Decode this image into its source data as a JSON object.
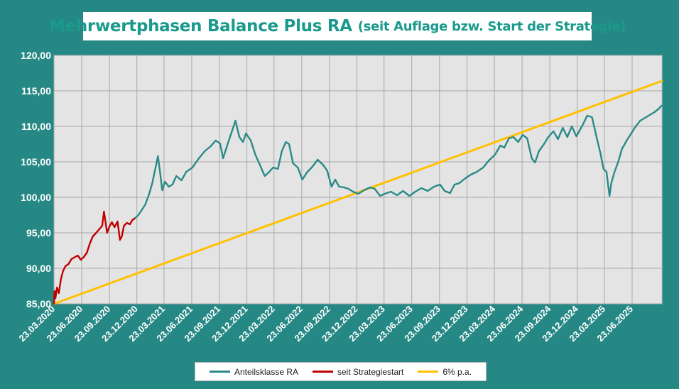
{
  "header": {
    "title": "Mehrwertphasen Balance Plus RA",
    "subtitle": "(seit Auflage bzw. Start der Strategie)"
  },
  "legend": {
    "items": [
      {
        "label": "Anteilsklasse RA",
        "color": "#2a8a87"
      },
      {
        "label": "seit Strategiestart",
        "color": "#c00000"
      },
      {
        "label": "6% p.a.",
        "color": "#ffc000"
      }
    ]
  },
  "chart_data": {
    "type": "line",
    "title": "Mehrwertphasen Balance Plus RA (seit Auflage bzw. Start der Strategie)",
    "xlabel": "",
    "ylabel": "",
    "ylim": [
      85,
      120
    ],
    "xlim": [
      "2020-03-23",
      "2025-09-30"
    ],
    "grid": true,
    "legend_position": "bottom",
    "y_ticks": [
      "85,00",
      "90,00",
      "95,00",
      "100,00",
      "105,00",
      "110,00",
      "115,00",
      "120,00"
    ],
    "y_tick_values": [
      85,
      90,
      95,
      100,
      105,
      110,
      115,
      120
    ],
    "x_ticks": [
      "23.03.2020",
      "23.06.2020",
      "23.09.2020",
      "23.12.2020",
      "23.03.2021",
      "23.06.2021",
      "23.09.2021",
      "23.12.2021",
      "23.03.2022",
      "23.06.2022",
      "23.09.2022",
      "23.12.2022",
      "23.03.2023",
      "23.06.2023",
      "23.09.2023",
      "23.12.2023",
      "23.03.2024",
      "23.06.2024",
      "23.09.2024",
      "23.12.2024",
      "23.03.2025",
      "23.06.2025"
    ],
    "x_tick_dates": [
      "2020-03-23",
      "2020-06-23",
      "2020-09-23",
      "2020-12-23",
      "2021-03-23",
      "2021-06-23",
      "2021-09-23",
      "2021-12-23",
      "2022-03-23",
      "2022-06-23",
      "2022-09-23",
      "2022-12-23",
      "2023-03-23",
      "2023-06-23",
      "2023-09-23",
      "2023-12-23",
      "2024-03-23",
      "2024-06-23",
      "2024-09-23",
      "2024-12-23",
      "2025-03-23",
      "2025-06-23"
    ],
    "series": [
      {
        "name": "Anteilsklasse RA",
        "color": "#2a8a87",
        "points": [
          [
            "2020-12-15",
            97.0
          ],
          [
            "2020-12-28",
            97.5
          ],
          [
            "2021-01-08",
            98.2
          ],
          [
            "2021-01-20",
            99.0
          ],
          [
            "2021-02-02",
            100.5
          ],
          [
            "2021-02-12",
            102.0
          ],
          [
            "2021-02-22",
            104.0
          ],
          [
            "2021-03-03",
            105.8
          ],
          [
            "2021-03-10",
            103.5
          ],
          [
            "2021-03-17",
            101.0
          ],
          [
            "2021-03-26",
            102.2
          ],
          [
            "2021-04-08",
            101.5
          ],
          [
            "2021-04-20",
            101.8
          ],
          [
            "2021-05-03",
            103.0
          ],
          [
            "2021-05-20",
            102.4
          ],
          [
            "2021-06-05",
            103.6
          ],
          [
            "2021-06-25",
            104.2
          ],
          [
            "2021-07-15",
            105.4
          ],
          [
            "2021-08-05",
            106.5
          ],
          [
            "2021-08-25",
            107.2
          ],
          [
            "2021-09-10",
            108.0
          ],
          [
            "2021-09-25",
            107.6
          ],
          [
            "2021-10-05",
            105.5
          ],
          [
            "2021-10-20",
            107.5
          ],
          [
            "2021-11-05",
            109.5
          ],
          [
            "2021-11-15",
            110.8
          ],
          [
            "2021-11-28",
            108.5
          ],
          [
            "2021-12-10",
            107.8
          ],
          [
            "2021-12-20",
            109.0
          ],
          [
            "2022-01-05",
            108.0
          ],
          [
            "2022-01-20",
            106.0
          ],
          [
            "2022-02-05",
            104.5
          ],
          [
            "2022-02-20",
            103.0
          ],
          [
            "2022-03-05",
            103.5
          ],
          [
            "2022-03-20",
            104.2
          ],
          [
            "2022-04-05",
            104.0
          ],
          [
            "2022-04-18",
            106.5
          ],
          [
            "2022-05-01",
            107.8
          ],
          [
            "2022-05-12",
            107.5
          ],
          [
            "2022-05-25",
            104.8
          ],
          [
            "2022-06-10",
            104.2
          ],
          [
            "2022-06-25",
            102.5
          ],
          [
            "2022-07-10",
            103.5
          ],
          [
            "2022-07-28",
            104.3
          ],
          [
            "2022-08-15",
            105.3
          ],
          [
            "2022-09-01",
            104.6
          ],
          [
            "2022-09-15",
            103.8
          ],
          [
            "2022-09-30",
            101.5
          ],
          [
            "2022-10-12",
            102.5
          ],
          [
            "2022-10-25",
            101.5
          ],
          [
            "2022-11-10",
            101.4
          ],
          [
            "2022-11-25",
            101.2
          ],
          [
            "2022-12-10",
            100.8
          ],
          [
            "2022-12-28",
            100.5
          ],
          [
            "2023-01-15",
            101.0
          ],
          [
            "2023-02-05",
            101.4
          ],
          [
            "2023-02-20",
            101.2
          ],
          [
            "2023-03-10",
            100.2
          ],
          [
            "2023-03-25",
            100.5
          ],
          [
            "2023-04-15",
            100.8
          ],
          [
            "2023-05-05",
            100.3
          ],
          [
            "2023-05-25",
            100.9
          ],
          [
            "2023-06-15",
            100.2
          ],
          [
            "2023-07-05",
            100.8
          ],
          [
            "2023-07-25",
            101.3
          ],
          [
            "2023-08-15",
            100.9
          ],
          [
            "2023-09-05",
            101.5
          ],
          [
            "2023-09-25",
            101.8
          ],
          [
            "2023-10-10",
            100.9
          ],
          [
            "2023-10-28",
            100.6
          ],
          [
            "2023-11-12",
            101.8
          ],
          [
            "2023-11-28",
            102.0
          ],
          [
            "2023-12-15",
            102.6
          ],
          [
            "2024-01-05",
            103.2
          ],
          [
            "2024-01-25",
            103.6
          ],
          [
            "2024-02-15",
            104.2
          ],
          [
            "2024-03-05",
            105.2
          ],
          [
            "2024-03-25",
            106.0
          ],
          [
            "2024-04-12",
            107.3
          ],
          [
            "2024-04-25",
            107.0
          ],
          [
            "2024-05-10",
            108.3
          ],
          [
            "2024-05-25",
            108.5
          ],
          [
            "2024-06-10",
            107.8
          ],
          [
            "2024-06-25",
            108.8
          ],
          [
            "2024-07-10",
            108.3
          ],
          [
            "2024-07-25",
            105.5
          ],
          [
            "2024-08-05",
            104.9
          ],
          [
            "2024-08-18",
            106.5
          ],
          [
            "2024-09-05",
            107.6
          ],
          [
            "2024-09-18",
            108.5
          ],
          [
            "2024-10-05",
            109.3
          ],
          [
            "2024-10-20",
            108.2
          ],
          [
            "2024-11-05",
            109.8
          ],
          [
            "2024-11-20",
            108.5
          ],
          [
            "2024-12-05",
            110.0
          ],
          [
            "2024-12-20",
            108.6
          ],
          [
            "2025-01-10",
            110.2
          ],
          [
            "2025-01-25",
            111.5
          ],
          [
            "2025-02-10",
            111.3
          ],
          [
            "2025-02-25",
            108.5
          ],
          [
            "2025-03-10",
            106.2
          ],
          [
            "2025-03-20",
            104.0
          ],
          [
            "2025-03-30",
            103.6
          ],
          [
            "2025-04-05",
            101.5
          ],
          [
            "2025-04-09",
            100.2
          ],
          [
            "2025-04-15",
            102.0
          ],
          [
            "2025-04-25",
            103.5
          ],
          [
            "2025-05-08",
            105.0
          ],
          [
            "2025-05-20",
            106.8
          ],
          [
            "2025-06-05",
            108.0
          ],
          [
            "2025-06-20",
            109.0
          ],
          [
            "2025-07-05",
            110.0
          ],
          [
            "2025-07-20",
            110.8
          ],
          [
            "2025-08-05",
            111.2
          ],
          [
            "2025-08-20",
            111.6
          ],
          [
            "2025-09-05",
            112.0
          ],
          [
            "2025-09-20",
            112.5
          ],
          [
            "2025-09-28",
            112.9
          ]
        ]
      },
      {
        "name": "seit Strategiestart",
        "color": "#c00000",
        "points": [
          [
            "2020-03-23",
            85.0
          ],
          [
            "2020-03-25",
            86.8
          ],
          [
            "2020-03-28",
            85.8
          ],
          [
            "2020-04-02",
            87.3
          ],
          [
            "2020-04-08",
            86.5
          ],
          [
            "2020-04-15",
            88.5
          ],
          [
            "2020-04-22",
            89.6
          ],
          [
            "2020-04-30",
            90.3
          ],
          [
            "2020-05-10",
            90.6
          ],
          [
            "2020-05-20",
            91.3
          ],
          [
            "2020-06-01",
            91.6
          ],
          [
            "2020-06-10",
            91.8
          ],
          [
            "2020-06-20",
            91.2
          ],
          [
            "2020-06-30",
            91.6
          ],
          [
            "2020-07-10",
            92.2
          ],
          [
            "2020-07-20",
            93.5
          ],
          [
            "2020-07-30",
            94.5
          ],
          [
            "2020-08-10",
            95.0
          ],
          [
            "2020-08-20",
            95.5
          ],
          [
            "2020-08-30",
            96.0
          ],
          [
            "2020-09-05",
            98.0
          ],
          [
            "2020-09-10",
            96.5
          ],
          [
            "2020-09-15",
            95.0
          ],
          [
            "2020-09-22",
            95.8
          ],
          [
            "2020-10-01",
            96.5
          ],
          [
            "2020-10-10",
            95.8
          ],
          [
            "2020-10-20",
            96.6
          ],
          [
            "2020-10-28",
            94.0
          ],
          [
            "2020-11-03",
            94.5
          ],
          [
            "2020-11-10",
            96.0
          ],
          [
            "2020-11-20",
            96.4
          ],
          [
            "2020-11-30",
            96.2
          ],
          [
            "2020-12-08",
            96.8
          ],
          [
            "2020-12-15",
            97.0
          ]
        ]
      },
      {
        "name": "6% p.a.",
        "color": "#ffc000",
        "points": [
          [
            "2020-03-23",
            85.0
          ],
          [
            "2025-09-30",
            116.4
          ]
        ]
      }
    ]
  }
}
